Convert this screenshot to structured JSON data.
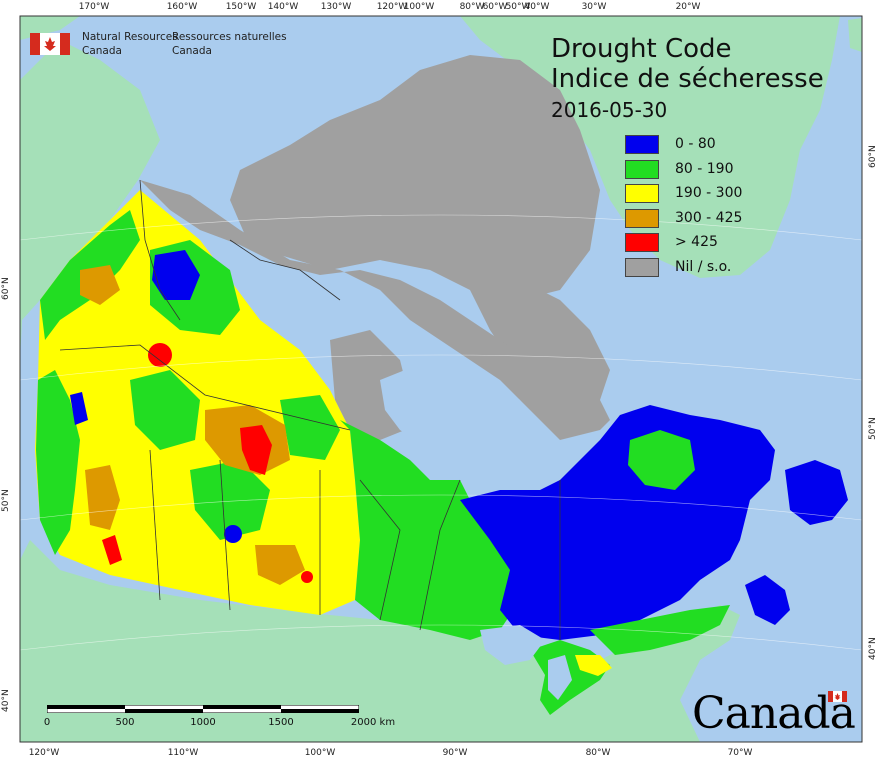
{
  "map": {
    "title_en": "Drought Code",
    "title_fr": "Indice de sécheresse",
    "date": "2016-05-30",
    "agency": {
      "en_line1": "Natural Resources",
      "en_line2": "Canada",
      "fr_line1": "Ressources naturelles",
      "fr_line2": "Canada"
    },
    "legend": [
      {
        "label": "0 - 80",
        "color": "#0000ee"
      },
      {
        "label": "80 - 190",
        "color": "#22dd22"
      },
      {
        "label": "190 - 300",
        "color": "#ffff00"
      },
      {
        "label": "300 - 425",
        "color": "#dd9900"
      },
      {
        "label": "> 425",
        "color": "#ff0000"
      },
      {
        "label": "Nil / s.o.",
        "color": "#a0a0a0"
      }
    ],
    "colors": {
      "ocean": "#aaccee",
      "foreign_land": "#a5e0b8",
      "no_data": "#a0a0a0"
    },
    "graticule": {
      "top": [
        "170°W",
        "160°W",
        "150°W",
        "140°W",
        "130°W",
        "120°W",
        "100°W",
        "80°W",
        "60°W",
        "50°W",
        "40°W",
        "30°W",
        "20°W"
      ],
      "bottom": [
        "120°W",
        "110°W",
        "100°W",
        "90°W",
        "80°W",
        "70°W"
      ],
      "left": [
        "60°N",
        "50°N",
        "40°N"
      ],
      "right": [
        "60°N",
        "50°N",
        "40°N"
      ]
    },
    "scale_bar": {
      "labels": [
        "0",
        "500",
        "1000",
        "1500",
        "2000  km"
      ]
    },
    "wordmark": "Canada"
  }
}
